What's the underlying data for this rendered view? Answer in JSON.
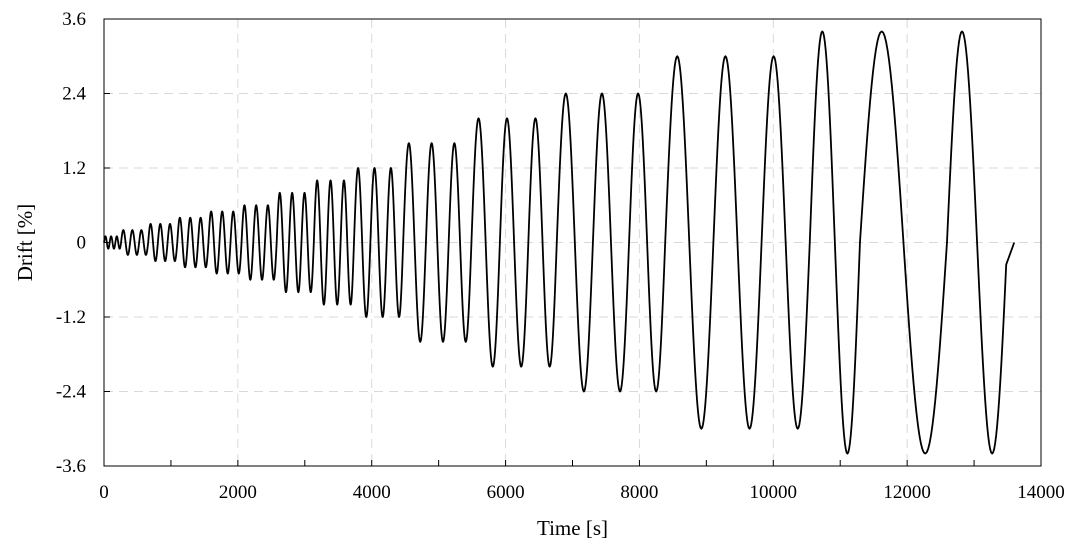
{
  "chart_data": {
    "type": "line",
    "title": "",
    "xlabel": "Time [s]",
    "ylabel": "Drift [%]",
    "xlim": [
      0,
      14000
    ],
    "ylim": [
      -3.6,
      3.6
    ],
    "x_ticks": [
      0,
      2000,
      4000,
      6000,
      8000,
      10000,
      12000,
      14000
    ],
    "y_ticks": [
      -3.6,
      -2.4,
      -1.2,
      0,
      1.2,
      2.4,
      3.6
    ],
    "y_tick_labels": [
      "-3.6",
      "-2.4",
      "-1.2",
      "0",
      "1.2",
      "2.4",
      "3.6"
    ],
    "grid": true,
    "grid_style": "dashed",
    "line_color": "#000000",
    "grid_color": "#d9d9d9",
    "legend": "none",
    "loading_protocol": [
      {
        "amplitude": 0.1,
        "cycles": 3,
        "period": 85
      },
      {
        "amplitude": 0.2,
        "cycles": 3,
        "period": 135
      },
      {
        "amplitude": 0.3,
        "cycles": 3,
        "period": 145
      },
      {
        "amplitude": 0.4,
        "cycles": 3,
        "period": 155
      },
      {
        "amplitude": 0.5,
        "cycles": 3,
        "period": 165
      },
      {
        "amplitude": 0.6,
        "cycles": 3,
        "period": 175
      },
      {
        "amplitude": 0.8,
        "cycles": 3,
        "period": 185
      },
      {
        "amplitude": 1.0,
        "cycles": 3,
        "period": 200
      },
      {
        "amplitude": 1.2,
        "cycles": 3,
        "period": 245
      },
      {
        "amplitude": 1.6,
        "cycles": 3,
        "period": 340
      },
      {
        "amplitude": 2.0,
        "cycles": 3,
        "period": 425
      },
      {
        "amplitude": 2.4,
        "cycles": 3,
        "period": 540
      },
      {
        "amplitude": 3.0,
        "cycles": 3,
        "period": 720
      },
      {
        "amplitude": 3.4,
        "cycles": 1,
        "period": 750
      },
      {
        "amplitude": 3.4,
        "cycles": 1,
        "period": 1300
      },
      {
        "amplitude": 3.4,
        "cycles": 1,
        "period": 900
      }
    ],
    "end_time": 13600,
    "end_value": 0
  }
}
